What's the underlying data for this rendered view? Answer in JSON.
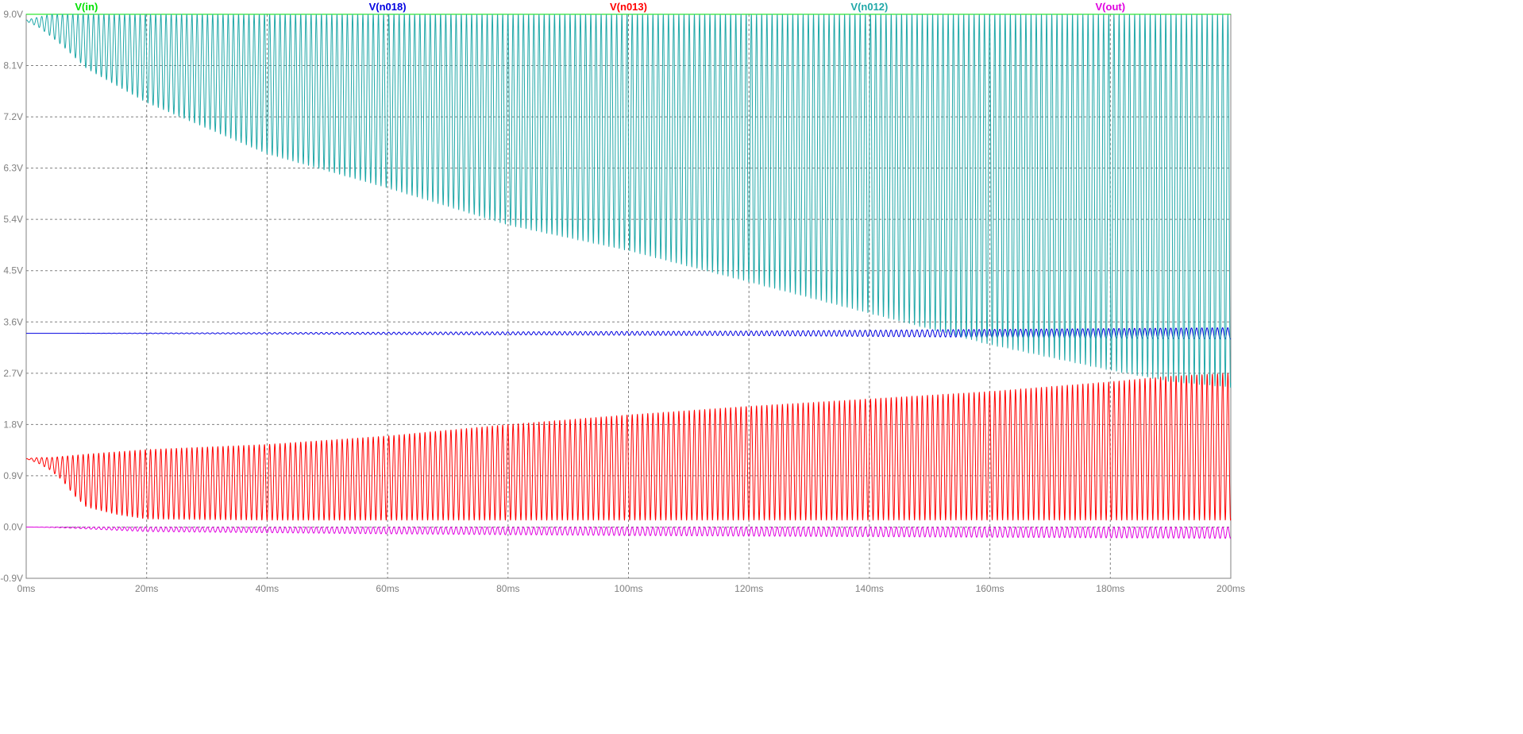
{
  "chart_data": {
    "type": "line",
    "title": "",
    "xlabel": "",
    "ylabel": "",
    "xlim": [
      0,
      200
    ],
    "ylim": [
      -0.9,
      9.0
    ],
    "x_unit": "ms",
    "y_unit": "V",
    "grid": true,
    "x_ticks": [
      0,
      20,
      40,
      60,
      80,
      100,
      120,
      140,
      160,
      180,
      200
    ],
    "x_tick_labels": [
      "0ms",
      "20ms",
      "40ms",
      "60ms",
      "80ms",
      "100ms",
      "120ms",
      "140ms",
      "160ms",
      "180ms",
      "200ms"
    ],
    "y_ticks": [
      9.0,
      8.1,
      7.2,
      6.3,
      5.4,
      4.5,
      3.6,
      2.7,
      1.8,
      0.9,
      0.0,
      -0.9
    ],
    "y_tick_labels": [
      "9.0V",
      "8.1V",
      "7.2V",
      "6.3V",
      "5.4V",
      "4.5V",
      "3.6V",
      "2.7V",
      "1.8V",
      "0.9V",
      "0.0V",
      "-0.9V"
    ],
    "series": [
      {
        "name": "V(in)",
        "color": "#00e000",
        "legend_x": 10,
        "kind": "flat",
        "x": [
          0,
          200
        ],
        "y": [
          9.0,
          9.0
        ]
      },
      {
        "name": "V(n018)",
        "color": "#0000e0",
        "legend_x": 60,
        "kind": "oscillation",
        "period": 0.86,
        "start": 6,
        "envelope_x": [
          0,
          6,
          60,
          120,
          160,
          200
        ],
        "upper": [
          3.4,
          3.4,
          3.42,
          3.44,
          3.47,
          3.5
        ],
        "lower": [
          3.4,
          3.4,
          3.38,
          3.36,
          3.33,
          3.3
        ]
      },
      {
        "name": "V(n013)",
        "color": "#ff0000",
        "legend_x": 100,
        "kind": "oscillation",
        "period": 0.86,
        "start": 0,
        "envelope_x": [
          0,
          2,
          4,
          6,
          8,
          10,
          15,
          20,
          40,
          60,
          80,
          100,
          120,
          140,
          160,
          180,
          190,
          200
        ],
        "upper": [
          1.2,
          1.22,
          1.22,
          1.24,
          1.26,
          1.28,
          1.32,
          1.36,
          1.45,
          1.6,
          1.8,
          1.97,
          2.12,
          2.25,
          2.38,
          2.55,
          2.65,
          2.7
        ],
        "lower": [
          1.2,
          1.12,
          1.0,
          0.82,
          0.55,
          0.35,
          0.22,
          0.14,
          0.12,
          0.12,
          0.12,
          0.12,
          0.12,
          0.12,
          0.12,
          0.12,
          0.12,
          0.12
        ]
      },
      {
        "name": "V(n012)",
        "color": "#20a8a8",
        "legend_x": 140,
        "kind": "oscillation",
        "period": 0.86,
        "start": 0,
        "envelope_x": [
          0,
          2,
          4,
          6,
          8,
          10,
          20,
          40,
          60,
          80,
          100,
          120,
          140,
          160,
          180,
          190,
          200
        ],
        "upper": [
          8.9,
          8.95,
          9.0,
          9.0,
          9.0,
          9.0,
          9.0,
          9.0,
          9.0,
          9.0,
          9.0,
          9.0,
          9.0,
          9.0,
          9.0,
          9.0,
          9.0
        ],
        "lower": [
          8.88,
          8.78,
          8.62,
          8.45,
          8.25,
          8.05,
          7.45,
          6.55,
          5.95,
          5.3,
          4.85,
          4.3,
          3.75,
          3.2,
          2.75,
          2.55,
          2.45
        ]
      },
      {
        "name": "V(out)",
        "color": "#e000e0",
        "legend_x": 180,
        "kind": "oscillation",
        "period": 0.86,
        "start": 0,
        "envelope_x": [
          0,
          5,
          20,
          60,
          100,
          140,
          180,
          200
        ],
        "upper": [
          0.0,
          0.0,
          0.0,
          0.0,
          0.0,
          0.0,
          0.0,
          0.0
        ],
        "lower": [
          0.0,
          -0.01,
          -0.08,
          -0.12,
          -0.15,
          -0.17,
          -0.19,
          -0.2
        ]
      }
    ]
  }
}
